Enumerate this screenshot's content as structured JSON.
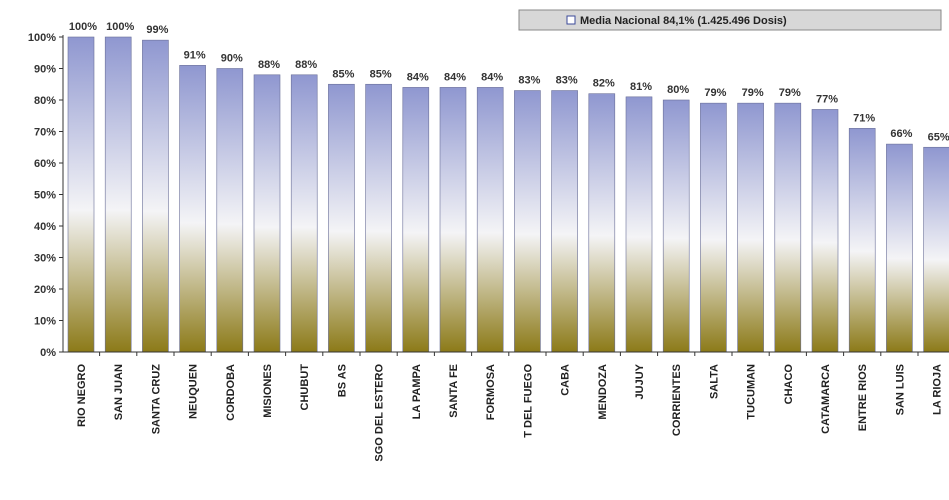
{
  "chart_data": {
    "type": "bar",
    "categories": [
      "RIO NEGRO",
      "SAN JUAN",
      "SANTA CRUZ",
      "NEUQUEN",
      "CORDOBA",
      "MISIONES",
      "CHUBUT",
      "BS AS",
      "SGO DEL ESTERO",
      "LA PAMPA",
      "SANTA FE",
      "FORMOSA",
      "T DEL FUEGO",
      "CABA",
      "MENDOZA",
      "JUJUY",
      "CORRIENTES",
      "SALTA",
      "TUCUMAN",
      "CHACO",
      "CATAMARCA",
      "ENTRE RIOS",
      "SAN LUIS",
      "LA RIOJA"
    ],
    "values": [
      100,
      100,
      99,
      91,
      90,
      88,
      88,
      85,
      85,
      84,
      84,
      84,
      83,
      83,
      82,
      81,
      80,
      79,
      79,
      79,
      77,
      71,
      66,
      65
    ],
    "data_labels": [
      "100%",
      "100%",
      "99%",
      "91%",
      "90%",
      "88%",
      "88%",
      "85%",
      "85%",
      "84%",
      "84%",
      "84%",
      "83%",
      "83%",
      "82%",
      "81%",
      "80%",
      "79%",
      "79%",
      "79%",
      "77%",
      "71%",
      "66%",
      "65%"
    ],
    "ylim": [
      0,
      100
    ],
    "y_ticks": [
      "0%",
      "10%",
      "20%",
      "30%",
      "40%",
      "50%",
      "60%",
      "70%",
      "80%",
      "90%",
      "100%"
    ],
    "legend": {
      "text": "Media Nacional 84,1%   (1.425.496 Dosis)",
      "position": "top-right"
    },
    "grid": false,
    "colors": {
      "bar_top": "#8f97d0",
      "bar_mid": "#f4f4f6",
      "bar_bottom": "#8c7a18",
      "bar_edge": "#6a6f98"
    }
  }
}
